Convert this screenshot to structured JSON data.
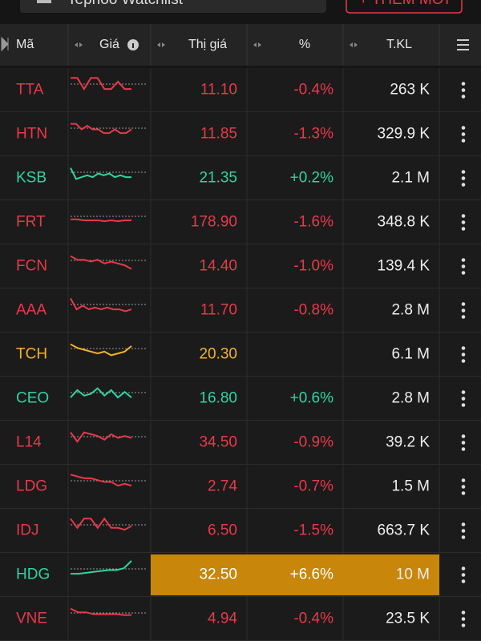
{
  "header": {
    "title": "Tephoo Watchlist",
    "button": "+ THÊM MỚI"
  },
  "table": {
    "columns": [
      "Mã",
      "Giá",
      "Thị giá",
      "%",
      "T.KL"
    ],
    "rows": [
      {
        "code": "TTA",
        "price": "11.10",
        "change": "-0.4%",
        "volume": "263 K",
        "status": "down",
        "sparkline": [
          9,
          9,
          3,
          9,
          9,
          3,
          3,
          7,
          3,
          3
        ]
      },
      {
        "code": "HTN",
        "price": "11.85",
        "change": "-1.3%",
        "volume": "329.9 K",
        "status": "down",
        "sparkline": [
          8,
          8,
          5,
          7,
          5,
          5,
          3,
          3,
          5,
          3,
          3,
          5
        ]
      },
      {
        "code": "KSB",
        "price": "21.35",
        "change": "+0.2%",
        "volume": "2.1 M",
        "status": "up",
        "sparkline": [
          8,
          2,
          3,
          4,
          3,
          5,
          4,
          5,
          3,
          4,
          3,
          3
        ]
      },
      {
        "code": "FRT",
        "price": "178.90",
        "change": "-1.6%",
        "volume": "348.8 K",
        "status": "down",
        "sparkline": [
          4,
          4,
          3.5,
          3.5,
          3.5,
          3,
          3.5,
          3,
          3.5,
          3.5
        ]
      },
      {
        "code": "FCN",
        "price": "14.40",
        "change": "-1.0%",
        "volume": "139.4 K",
        "status": "down",
        "sparkline": [
          8,
          6,
          6,
          5,
          6,
          4,
          5,
          4,
          3,
          1
        ]
      },
      {
        "code": "AAA",
        "price": "11.70",
        "change": "-0.8%",
        "volume": "2.8 M",
        "status": "down",
        "sparkline": [
          9,
          3,
          5,
          3,
          4,
          3,
          4,
          3,
          3,
          2,
          3
        ]
      },
      {
        "code": "TCH",
        "price": "20.30",
        "change": null,
        "volume": "6.1 M",
        "status": "ref",
        "sparkline": [
          8,
          6,
          5,
          4,
          3,
          4,
          2,
          3,
          4,
          7
        ]
      },
      {
        "code": "CEO",
        "price": "16.80",
        "change": "+0.6%",
        "volume": "2.8 M",
        "status": "up",
        "sparkline": [
          3,
          7,
          4,
          5,
          8,
          4,
          7,
          3,
          6,
          3
        ]
      },
      {
        "code": "L14",
        "price": "34.50",
        "change": "-0.9%",
        "volume": "39.2 K",
        "status": "down",
        "sparkline": [
          8,
          3,
          8,
          7,
          6,
          4,
          7,
          5,
          6,
          5
        ]
      },
      {
        "code": "LDG",
        "price": "2.74",
        "change": "-0.7%",
        "volume": "1.5 M",
        "status": "down",
        "sparkline": [
          9,
          8,
          7,
          7,
          6,
          5,
          5,
          3,
          4,
          3
        ]
      },
      {
        "code": "IDJ",
        "price": "6.50",
        "change": "-1.5%",
        "volume": "663.7 K",
        "status": "down",
        "sparkline": [
          9,
          4,
          9,
          9,
          4,
          9,
          4,
          4,
          3,
          5
        ]
      },
      {
        "code": "HDG",
        "price": "32.50",
        "change": "+6.6%",
        "volume": "10 M",
        "status": "up",
        "highlight": true,
        "sparkline": [
          3,
          3,
          3.5,
          4,
          4.5,
          5,
          5,
          6,
          10
        ]
      },
      {
        "code": "VNE",
        "price": "4.94",
        "change": "-0.4%",
        "volume": "23.5 K",
        "status": "down",
        "sparkline": [
          8,
          6,
          6,
          5,
          5,
          5,
          5,
          4.5,
          4.5
        ]
      }
    ]
  }
}
